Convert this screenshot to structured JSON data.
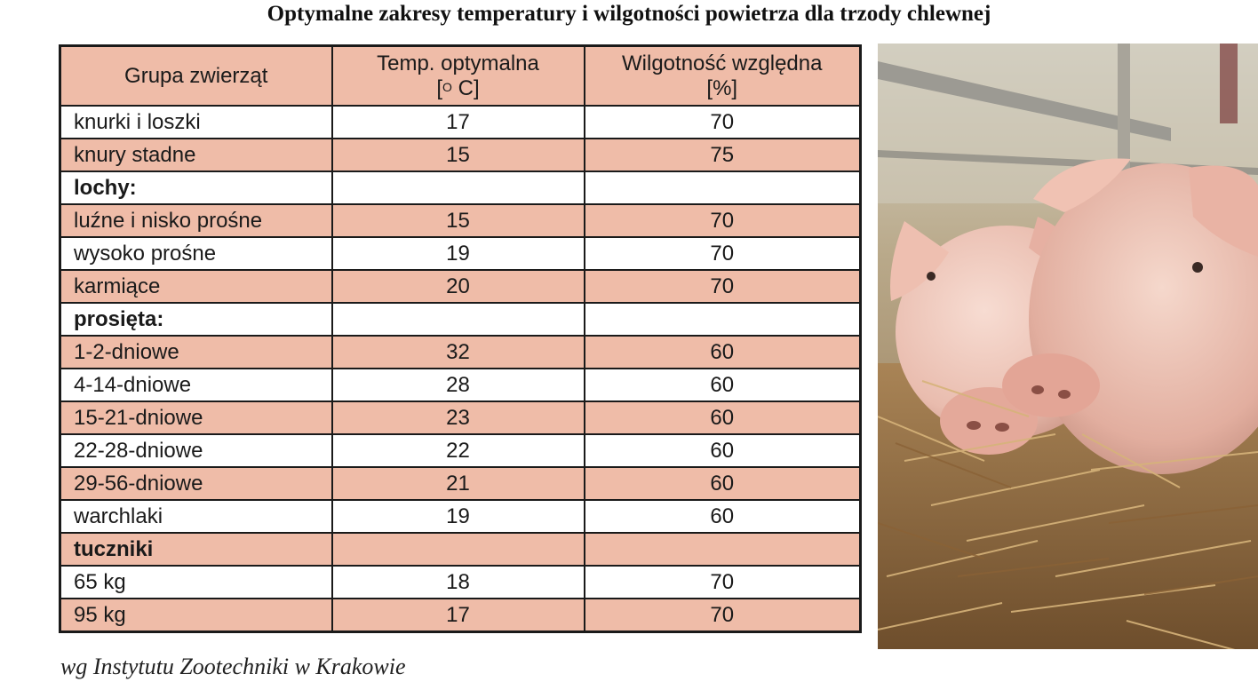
{
  "title": "Optymalne zakresy temperatury i wilgotności powietrza dla trzody chlewnej",
  "table": {
    "headers": {
      "group": "Grupa zwierząt",
      "temp_line1": "Temp. optymalna",
      "temp_open": "[",
      "temp_sup": "O",
      "temp_close": " C]",
      "hum_line1": "Wilgotność względna",
      "hum_line2": "[%]"
    },
    "rows": [
      {
        "name": "knurki i loszki",
        "temp": "17",
        "hum": "70"
      },
      {
        "name": "knury stadne",
        "temp": "15",
        "hum": "75"
      },
      {
        "name": "lochy:",
        "temp": "",
        "hum": ""
      },
      {
        "name": "luźne i nisko prośne",
        "temp": "15",
        "hum": "70"
      },
      {
        "name": "wysoko prośne",
        "temp": "19",
        "hum": "70"
      },
      {
        "name": "karmiące",
        "temp": "20",
        "hum": "70"
      },
      {
        "name": "prosięta:",
        "temp": "",
        "hum": ""
      },
      {
        "name": "1-2-dniowe",
        "temp": "32",
        "hum": "60"
      },
      {
        "name": "4-14-dniowe",
        "temp": "28",
        "hum": "60"
      },
      {
        "name": "15-21-dniowe",
        "temp": "23",
        "hum": "60"
      },
      {
        "name": "22-28-dniowe",
        "temp": "22",
        "hum": "60"
      },
      {
        "name": "29-56-dniowe",
        "temp": "21",
        "hum": "60"
      },
      {
        "name": "warchlaki",
        "temp": "19",
        "hum": "60"
      },
      {
        "name": "tuczniki",
        "temp": "",
        "hum": ""
      },
      {
        "name": "65 kg",
        "temp": "18",
        "hum": "70"
      },
      {
        "name": "95 kg",
        "temp": "17",
        "hum": "70"
      }
    ]
  },
  "source": "wg Instytutu Zootechniki w Krakowie",
  "colors": {
    "header_fill": "#efbca8",
    "row_fill": "#efbca8",
    "border": "#1a1a1a"
  },
  "photo": {
    "subject": "pigs-on-straw-photo"
  }
}
